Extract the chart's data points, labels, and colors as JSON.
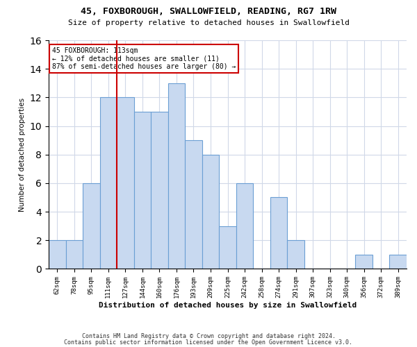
{
  "title1": "45, FOXBOROUGH, SWALLOWFIELD, READING, RG7 1RW",
  "title2": "Size of property relative to detached houses in Swallowfield",
  "xlabel": "Distribution of detached houses by size in Swallowfield",
  "ylabel": "Number of detached properties",
  "categories": [
    "62sqm",
    "78sqm",
    "95sqm",
    "111sqm",
    "127sqm",
    "144sqm",
    "160sqm",
    "176sqm",
    "193sqm",
    "209sqm",
    "225sqm",
    "242sqm",
    "258sqm",
    "274sqm",
    "291sqm",
    "307sqm",
    "323sqm",
    "340sqm",
    "356sqm",
    "372sqm",
    "389sqm"
  ],
  "values": [
    2,
    2,
    6,
    12,
    12,
    11,
    11,
    13,
    9,
    8,
    3,
    6,
    0,
    5,
    2,
    0,
    0,
    0,
    1,
    0,
    1
  ],
  "bar_color": "#c8d9f0",
  "bar_edge_color": "#6b9fd4",
  "red_line_index": 3.5,
  "annotation_line1": "45 FOXBOROUGH: 113sqm",
  "annotation_line2": "← 12% of detached houses are smaller (11)",
  "annotation_line3": "87% of semi-detached houses are larger (80) →",
  "annotation_box_color": "#ffffff",
  "annotation_box_edge": "#cc0000",
  "ylim": [
    0,
    16
  ],
  "yticks": [
    0,
    2,
    4,
    6,
    8,
    10,
    12,
    14,
    16
  ],
  "footer1": "Contains HM Land Registry data © Crown copyright and database right 2024.",
  "footer2": "Contains public sector information licensed under the Open Government Licence v3.0.",
  "bg_color": "#ffffff",
  "grid_color": "#d0d8e8"
}
